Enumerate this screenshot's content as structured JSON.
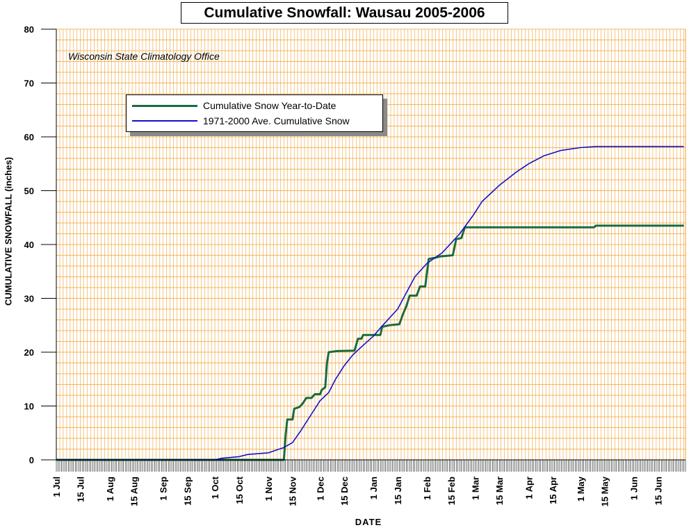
{
  "chart_data": {
    "type": "line",
    "title": "Cumulative Snowfall: Wausau 2005-2006",
    "annotation": "Wisconsin State Climatology Office",
    "xlabel": "DATE",
    "ylabel": "CUMULATIVE SNOWFALL (inches)",
    "ylim": [
      0,
      80
    ],
    "yticks": [
      0,
      10,
      20,
      30,
      40,
      50,
      60,
      70,
      80
    ],
    "x_ticks": [
      "1 Jul",
      "15 Jul",
      "1 Aug",
      "15 Aug",
      "1 Sep",
      "15 Sep",
      "1 Oct",
      "15 Oct",
      "1 Nov",
      "15 Nov",
      "1 Dec",
      "15 Dec",
      "1 Jan",
      "15 Jan",
      "1 Feb",
      "15 Feb",
      "1 Mar",
      "15 Mar",
      "1 Apr",
      "15 Apr",
      "1 May",
      "15 May",
      "1 Jun",
      "15 Jun"
    ],
    "grid": true,
    "legend_position": "top-left",
    "colors": {
      "year_to_date": "#1a6b3c",
      "average": "#1010c8",
      "grid": "#f0a030",
      "background": "#ffffff"
    },
    "series": [
      {
        "name": "Cumulative Snow Year-to-Date",
        "style": "step",
        "points": [
          [
            "1 Jul",
            0
          ],
          [
            "10 Nov",
            0
          ],
          [
            "11 Nov",
            4.5
          ],
          [
            "12 Nov",
            7.5
          ],
          [
            "15 Nov",
            7.5
          ],
          [
            "16 Nov",
            9.5
          ],
          [
            "19 Nov",
            9.8
          ],
          [
            "21 Nov",
            10.5
          ],
          [
            "23 Nov",
            11.5
          ],
          [
            "26 Nov",
            11.5
          ],
          [
            "28 Nov",
            12.2
          ],
          [
            "1 Dec",
            12.2
          ],
          [
            "2 Dec",
            13.0
          ],
          [
            "4 Dec",
            13.5
          ],
          [
            "5 Dec",
            18.0
          ],
          [
            "6 Dec",
            20.0
          ],
          [
            "11 Dec",
            20.2
          ],
          [
            "21 Dec",
            20.3
          ],
          [
            "23 Dec",
            22.5
          ],
          [
            "25 Dec",
            22.5
          ],
          [
            "26 Dec",
            23.2
          ],
          [
            "5 Jan",
            23.2
          ],
          [
            "6 Jan",
            24.7
          ],
          [
            "10 Jan",
            25.0
          ],
          [
            "16 Jan",
            25.2
          ],
          [
            "18 Jan",
            27.0
          ],
          [
            "20 Jan",
            28.5
          ],
          [
            "22 Jan",
            30.5
          ],
          [
            "26 Jan",
            30.5
          ],
          [
            "28 Jan",
            32.2
          ],
          [
            "31 Jan",
            32.2
          ],
          [
            "2 Feb",
            37.3
          ],
          [
            "5 Feb",
            37.5
          ],
          [
            "9 Feb",
            37.8
          ],
          [
            "16 Feb",
            38.0
          ],
          [
            "18 Feb",
            41.0
          ],
          [
            "21 Feb",
            41.2
          ],
          [
            "23 Feb",
            43.2
          ],
          [
            "9 May",
            43.2
          ],
          [
            "10 May",
            43.5
          ],
          [
            "30 Jun",
            43.5
          ]
        ]
      },
      {
        "name": "1971-2000 Ave. Cumulative Snow",
        "style": "line",
        "points": [
          [
            "1 Jul",
            0
          ],
          [
            "1 Oct",
            0
          ],
          [
            "5 Oct",
            0.3
          ],
          [
            "15 Oct",
            0.6
          ],
          [
            "20 Oct",
            1.0
          ],
          [
            "1 Nov",
            1.3
          ],
          [
            "10 Nov",
            2.3
          ],
          [
            "15 Nov",
            3.2
          ],
          [
            "20 Nov",
            5.5
          ],
          [
            "25 Nov",
            8.0
          ],
          [
            "1 Dec",
            11.0
          ],
          [
            "6 Dec",
            12.5
          ],
          [
            "10 Dec",
            15.0
          ],
          [
            "15 Dec",
            17.5
          ],
          [
            "20 Dec",
            19.5
          ],
          [
            "25 Dec",
            21.0
          ],
          [
            "1 Jan",
            23.0
          ],
          [
            "5 Jan",
            24.5
          ],
          [
            "15 Jan",
            28.0
          ],
          [
            "25 Jan",
            34.0
          ],
          [
            "1 Feb",
            36.5
          ],
          [
            "10 Feb",
            38.5
          ],
          [
            "20 Feb",
            42.0
          ],
          [
            "28 Feb",
            45.5
          ],
          [
            "5 Mar",
            48.0
          ],
          [
            "15 Mar",
            51.0
          ],
          [
            "25 Mar",
            53.5
          ],
          [
            "1 Apr",
            55.0
          ],
          [
            "10 Apr",
            56.5
          ],
          [
            "20 Apr",
            57.5
          ],
          [
            "1 May",
            58.0
          ],
          [
            "10 May",
            58.2
          ],
          [
            "30 Jun",
            58.2
          ]
        ]
      }
    ]
  }
}
